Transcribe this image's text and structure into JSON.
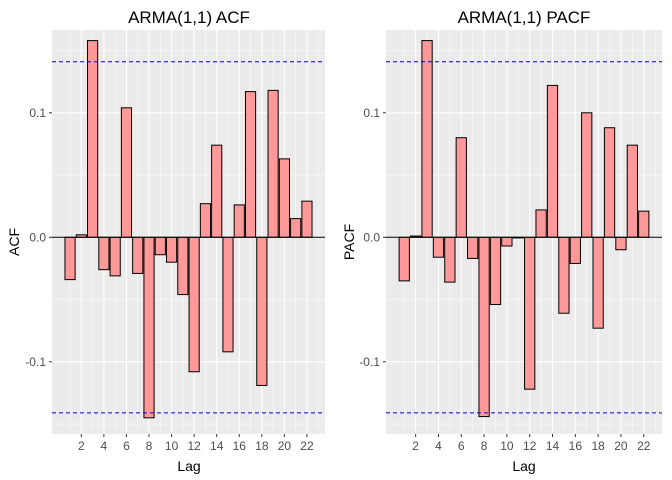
{
  "chart_data": [
    {
      "type": "bar",
      "title": "ARMA(1,1) ACF",
      "xlabel": "Lag",
      "ylabel": "ACF",
      "x": [
        1,
        2,
        3,
        4,
        5,
        6,
        7,
        8,
        9,
        10,
        11,
        12,
        13,
        14,
        15,
        16,
        17,
        18,
        19,
        20,
        21,
        22
      ],
      "values": [
        -0.034,
        0.002,
        0.158,
        -0.026,
        -0.031,
        0.104,
        -0.029,
        -0.145,
        -0.014,
        -0.02,
        -0.046,
        -0.108,
        0.027,
        0.074,
        -0.092,
        0.026,
        0.117,
        -0.119,
        0.118,
        0.063,
        0.015,
        0.029
      ],
      "xticks": [
        2,
        4,
        6,
        8,
        10,
        12,
        14,
        16,
        18,
        20,
        22
      ],
      "yticks": [
        -0.1,
        0.0,
        0.1
      ],
      "ytick_labels": [
        "-0.1",
        "0.0",
        "0.1"
      ],
      "ylim": [
        -0.158,
        0.1665
      ],
      "xlim": [
        -0.6,
        23.6
      ],
      "ci": 0.141,
      "bar_fill": "#ff9999",
      "ci_color": "#0000cc",
      "grid": true
    },
    {
      "type": "bar",
      "title": "ARMA(1,1) PACF",
      "xlabel": "Lag",
      "ylabel": "PACF",
      "x": [
        1,
        2,
        3,
        4,
        5,
        6,
        7,
        8,
        9,
        10,
        11,
        12,
        13,
        14,
        15,
        16,
        17,
        18,
        19,
        20,
        21,
        22
      ],
      "values": [
        -0.035,
        0.001,
        0.158,
        -0.016,
        -0.036,
        0.08,
        -0.017,
        -0.144,
        -0.054,
        -0.007,
        0.0,
        -0.122,
        0.022,
        0.122,
        -0.061,
        -0.021,
        0.1,
        -0.073,
        0.088,
        -0.01,
        0.074,
        0.021
      ],
      "xticks": [
        2,
        4,
        6,
        8,
        10,
        12,
        14,
        16,
        18,
        20,
        22
      ],
      "yticks": [
        -0.1,
        0.0,
        0.1
      ],
      "ytick_labels": [
        "-0.1",
        "0.0",
        "0.1"
      ],
      "ylim": [
        -0.158,
        0.1665
      ],
      "xlim": [
        -0.6,
        23.6
      ],
      "ci": 0.141,
      "bar_fill": "#ff9999",
      "ci_color": "#0000cc",
      "grid": true
    }
  ]
}
